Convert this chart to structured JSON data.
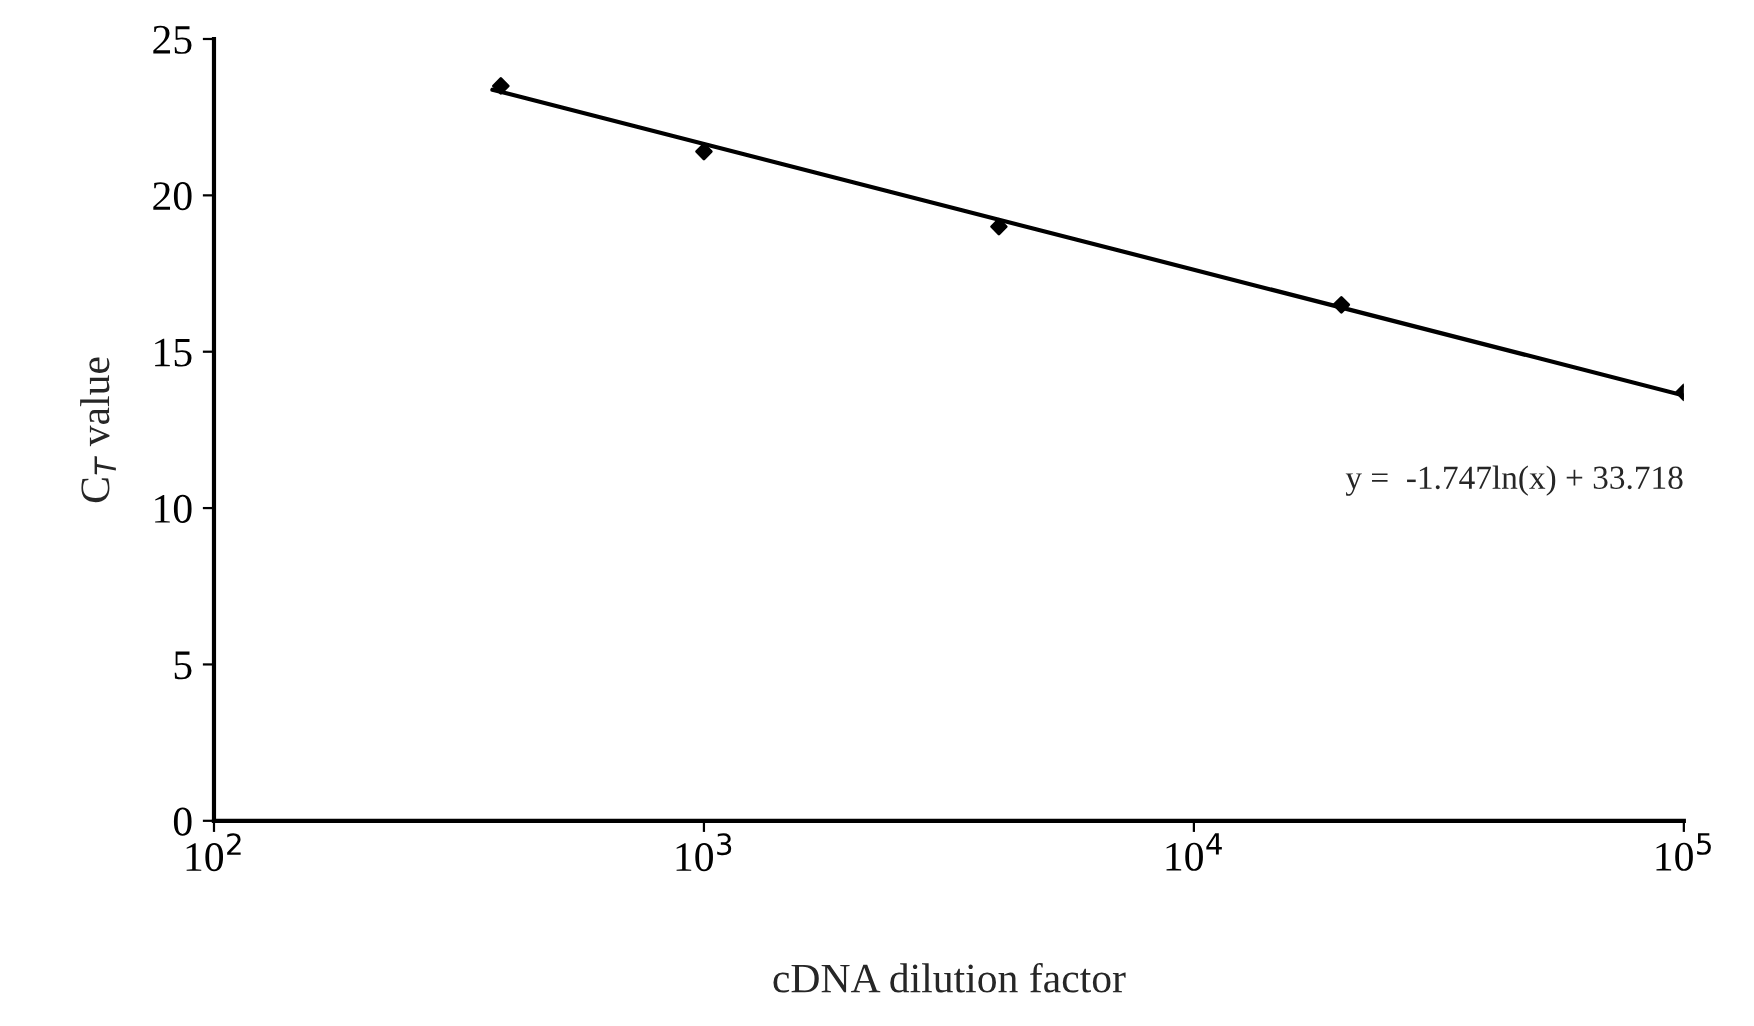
{
  "chart_data": {
    "type": "scatter",
    "xlabel": "cDNA dilution factor",
    "ylabel": "C$_{T}$ value",
    "log": "x",
    "xlim": [
      100,
      100000
    ],
    "ylim": [
      0,
      25
    ],
    "xticks": [
      {
        "value": 100,
        "label": "10$^{2}$"
      },
      {
        "value": 1000,
        "label": "10$^{3}$"
      },
      {
        "value": 10000,
        "label": "10$^{4}$"
      },
      {
        "value": 100000,
        "label": "10$^{5}$"
      }
    ],
    "yticks": [
      0,
      5,
      10,
      15,
      20,
      25
    ],
    "grid": false,
    "legend": false,
    "series": [
      {
        "color": "#000000",
        "marker": "diamond",
        "x": [
          385,
          1000,
          4000,
          20000,
          100000
        ],
        "values": [
          23.5,
          21.4,
          19.0,
          16.5,
          13.7
        ]
      },
      {
        "type": "line",
        "color": "#000000",
        "marker": "none",
        "line_style": "solid",
        "x": [
          370,
          100000
        ],
        "values": [
          23.38,
          13.6
        ]
      }
    ],
    "annotations": [
      "y =  -1.747ln(x) + 33.718"
    ]
  }
}
